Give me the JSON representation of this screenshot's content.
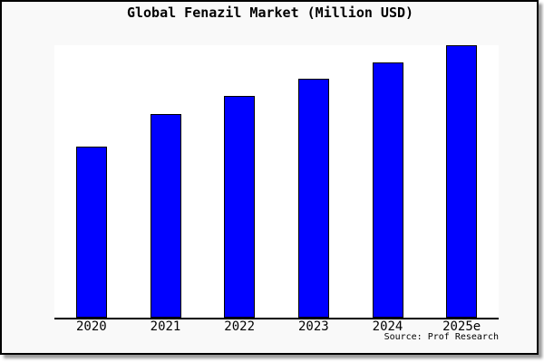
{
  "chart_data": {
    "type": "bar",
    "title": "Global Fenazil Market (Million USD)",
    "categories": [
      "2020",
      "2021",
      "2022",
      "2023",
      "2024",
      "2025e"
    ],
    "values": [
      62.8,
      74.9,
      81.4,
      87.7,
      93.7,
      100
    ],
    "value_scale_note": "y-axis has no tick labels; values are relative bar heights with tallest bar (2025e) = 100",
    "xlabel": "",
    "ylabel": "",
    "grid": false,
    "legend_visible": false,
    "y_axis_labels_visible": false,
    "ylim": [
      0,
      100
    ],
    "colors": {
      "bar_fill": "#0000ff",
      "bar_border": "#000000",
      "plot_background": "#ffffff",
      "figure_background": "#f9f9f9",
      "frame_border": "#000000",
      "axis_line": "#000000",
      "text": "#000000"
    }
  },
  "footer": {
    "source": "Source: Prof Research"
  }
}
